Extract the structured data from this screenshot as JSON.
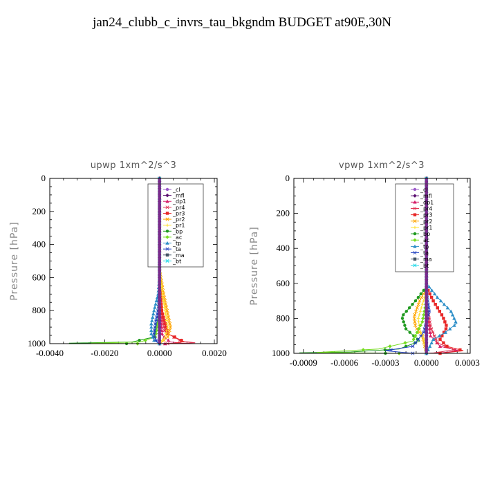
{
  "title": "jan24_clubb_c_invrs_tau_bkgndm  BUDGET at90E,30N",
  "legend_entries": [
    "_cl",
    "_mfl",
    "_dp1",
    "_pr4",
    "_pr3",
    "_pr2",
    "_pr1",
    "_bp",
    "_ac",
    "_tp",
    "_ta",
    "_ma",
    "_bt"
  ],
  "legend_colors": [
    "#9b59c9",
    "#5a1070",
    "#d6206a",
    "#e03050",
    "#e82828",
    "#ffa500",
    "#ffe030",
    "#1f9a1f",
    "#77dd22",
    "#2e8fc8",
    "#2040c0",
    "#445566",
    "#22d8e8"
  ],
  "chart_data": [
    {
      "type": "line",
      "title": "upwp   1xm^2/s^3",
      "ylabel": "Pressure [hPa]",
      "xlim": [
        -0.004,
        0.0021
      ],
      "ylim": [
        1000,
        0
      ],
      "xticks": [
        -0.004,
        -0.002,
        0.0,
        0.002
      ],
      "xtick_labels": [
        "-0.0040",
        "-0.0020",
        "0.0000",
        "0.0020"
      ],
      "yticks": [
        0,
        200,
        400,
        600,
        800,
        1000
      ],
      "ytick_labels": [
        "0",
        "200",
        "400",
        "600",
        "800",
        "1000"
      ],
      "series": [
        {
          "name": "_dp1",
          "points": [
            [
              0,
              0
            ],
            [
              0,
              600
            ],
            [
              2e-05,
              800
            ],
            [
              0.0001,
              950
            ],
            [
              0.0004,
              990
            ],
            [
              0.0008,
              997
            ],
            [
              0.0002,
              1000
            ]
          ]
        },
        {
          "name": "_pr4",
          "points": [
            [
              0,
              0
            ],
            [
              0,
              600
            ],
            [
              5e-05,
              800
            ],
            [
              0.0002,
              930
            ],
            [
              0.0008,
              985
            ],
            [
              0.0013,
              995
            ],
            [
              0.0003,
              1000
            ]
          ]
        },
        {
          "name": "_pr3",
          "points": [
            [
              0,
              0
            ],
            [
              0,
              600
            ],
            [
              8e-05,
              800
            ],
            [
              0.0003,
              940
            ],
            [
              0.0009,
              988
            ],
            [
              0.0005,
              998
            ],
            [
              0,
              1000
            ]
          ]
        },
        {
          "name": "_pr2",
          "points": [
            [
              0,
              0
            ],
            [
              0,
              550
            ],
            [
              0.00015,
              700
            ],
            [
              0.0003,
              820
            ],
            [
              0.0004,
              900
            ],
            [
              0.0003,
              960
            ],
            [
              0.0001,
              990
            ],
            [
              0,
              1000
            ]
          ]
        },
        {
          "name": "_pr1",
          "points": [
            [
              0,
              0
            ],
            [
              0,
              550
            ],
            [
              0.0001,
              700
            ],
            [
              0.00022,
              820
            ],
            [
              0.0003,
              900
            ],
            [
              0.0002,
              960
            ],
            [
              5e-05,
              990
            ],
            [
              0,
              1000
            ]
          ]
        },
        {
          "name": "_bp",
          "points": [
            [
              0,
              0
            ],
            [
              0,
              700
            ],
            [
              -5e-05,
              850
            ],
            [
              -0.0002,
              960
            ],
            [
              -0.001,
              990
            ],
            [
              -0.0033,
              997
            ],
            [
              -0.0012,
              1000
            ]
          ]
        },
        {
          "name": "_ac",
          "points": [
            [
              0,
              0
            ],
            [
              0,
              700
            ],
            [
              -3e-05,
              850
            ],
            [
              -0.00015,
              960
            ],
            [
              -0.0007,
              990
            ],
            [
              -0.0025,
              997
            ],
            [
              -0.0008,
              1000
            ]
          ]
        },
        {
          "name": "_tp",
          "points": [
            [
              0,
              0
            ],
            [
              0,
              600
            ],
            [
              -5e-05,
              700
            ],
            [
              -0.0002,
              800
            ],
            [
              -0.0003,
              880
            ],
            [
              -0.0003,
              940
            ],
            [
              -0.0002,
              980
            ],
            [
              0,
              1000
            ]
          ]
        },
        {
          "name": "_ta",
          "points": [
            [
              0,
              0
            ],
            [
              0,
              650
            ],
            [
              -3e-05,
              780
            ],
            [
              -0.00015,
              880
            ],
            [
              -0.0002,
              950
            ],
            [
              -0.0001,
              990
            ],
            [
              0,
              1000
            ]
          ]
        },
        {
          "name": "_cl",
          "points": [
            [
              0,
              0
            ],
            [
              0,
              1000
            ]
          ]
        },
        {
          "name": "_mfl",
          "points": [
            [
              0,
              0
            ],
            [
              0,
              1000
            ]
          ]
        },
        {
          "name": "_bt",
          "points": [
            [
              0,
              0
            ],
            [
              0,
              1000
            ]
          ]
        }
      ]
    },
    {
      "type": "line",
      "title": "vpwp   1xm^2/s^3",
      "ylabel": "Pressure [hPa]",
      "xlim": [
        -0.00097,
        0.00032
      ],
      "ylim": [
        1000,
        0
      ],
      "xticks": [
        -0.0009,
        -0.0006,
        -0.0003,
        0.0,
        0.0003
      ],
      "xtick_labels": [
        "-0.0009",
        "-0.0006",
        "-0.0003",
        "0.0000",
        "0.0003"
      ],
      "yticks": [
        0,
        200,
        400,
        600,
        800,
        1000
      ],
      "ytick_labels": [
        "0",
        "200",
        "400",
        "600",
        "800",
        "1000"
      ],
      "series": [
        {
          "name": "_dp1",
          "points": [
            [
              0,
              0
            ],
            [
              0,
              750
            ],
            [
              3e-05,
              900
            ],
            [
              0.0001,
              960
            ],
            [
              0.00024,
              985
            ],
            [
              0.0001,
              998
            ],
            [
              0,
              1000
            ]
          ]
        },
        {
          "name": "_pr4",
          "points": [
            [
              0,
              0
            ],
            [
              0,
              700
            ],
            [
              3e-05,
              850
            ],
            [
              8e-05,
              940
            ],
            [
              0.0002,
              980
            ],
            [
              5e-05,
              998
            ],
            [
              0,
              1000
            ]
          ]
        },
        {
          "name": "_pr3",
          "points": [
            [
              0,
              0
            ],
            [
              0,
              620
            ],
            [
              5e-05,
              700
            ],
            [
              0.00012,
              790
            ],
            [
              0.00015,
              850
            ],
            [
              0.0001,
              920
            ],
            [
              0.00015,
              960
            ],
            [
              0.00027,
              985
            ],
            [
              0.0001,
              1000
            ]
          ]
        },
        {
          "name": "_pr2",
          "points": [
            [
              0,
              0
            ],
            [
              0,
              630
            ],
            [
              -5e-05,
              700
            ],
            [
              -9e-05,
              790
            ],
            [
              -8e-05,
              850
            ],
            [
              -3e-05,
              900
            ],
            [
              0,
              1000
            ]
          ]
        },
        {
          "name": "_pr1",
          "points": [
            [
              0,
              0
            ],
            [
              0,
              650
            ],
            [
              -3e-05,
              720
            ],
            [
              -6e-05,
              800
            ],
            [
              -5e-05,
              860
            ],
            [
              -2e-05,
              920
            ],
            [
              0,
              1000
            ]
          ]
        },
        {
          "name": "_bp",
          "points": [
            [
              0,
              0
            ],
            [
              0,
              620
            ],
            [
              -8e-05,
              700
            ],
            [
              -0.00018,
              790
            ],
            [
              -0.00015,
              860
            ],
            [
              -5e-05,
              930
            ],
            [
              -0.0002,
              975
            ],
            [
              -0.00055,
              992
            ],
            [
              -0.00093,
              997
            ],
            [
              -0.0003,
              1000
            ]
          ]
        },
        {
          "name": "_ac",
          "points": [
            [
              0,
              0
            ],
            [
              0,
              700
            ],
            [
              -3e-05,
              820
            ],
            [
              -0.0001,
              930
            ],
            [
              -0.00035,
              975
            ],
            [
              -0.0008,
              995
            ],
            [
              -0.0002,
              1000
            ]
          ]
        },
        {
          "name": "_tp",
          "points": [
            [
              0,
              0
            ],
            [
              0,
              600
            ],
            [
              8e-05,
              680
            ],
            [
              0.00018,
              760
            ],
            [
              0.00022,
              830
            ],
            [
              0.00014,
              880
            ],
            [
              5e-05,
              920
            ],
            [
              0,
              1000
            ]
          ]
        },
        {
          "name": "_ta",
          "points": [
            [
              0,
              0
            ],
            [
              0,
              650
            ],
            [
              2e-05,
              760
            ],
            [
              -2e-05,
              880
            ],
            [
              -0.0001,
              960
            ],
            [
              -0.0003,
              985
            ],
            [
              -0.0001,
              1000
            ]
          ]
        },
        {
          "name": "_cl",
          "points": [
            [
              0,
              0
            ],
            [
              0,
              1000
            ]
          ]
        },
        {
          "name": "_mfl",
          "points": [
            [
              0,
              0
            ],
            [
              0,
              1000
            ]
          ]
        },
        {
          "name": "_bt",
          "points": [
            [
              0,
              0
            ],
            [
              0,
              1000
            ]
          ]
        }
      ]
    }
  ]
}
